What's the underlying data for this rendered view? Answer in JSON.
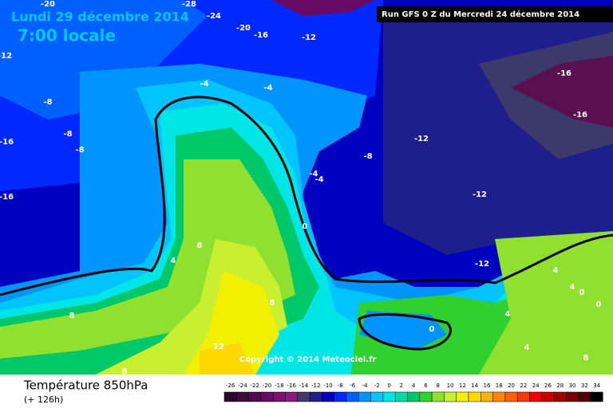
{
  "header": {
    "date": "Lundi 29 décembre 2014",
    "time": "7:00 locale",
    "run": "Run GFS 0 Z du Mercredi 24 décembre 2014"
  },
  "copyright": "Copyright © 2014 Meteociel.fr",
  "footer": {
    "title": "Température 850hPa",
    "lead": "(+ 126h)"
  },
  "legend": {
    "values": [
      -26,
      -24,
      -22,
      -20,
      -18,
      -16,
      -14,
      -12,
      -10,
      -8,
      -6,
      -4,
      -2,
      0,
      2,
      4,
      6,
      8,
      10,
      12,
      14,
      16,
      18,
      20,
      22,
      24,
      26,
      28,
      30,
      32,
      34
    ],
    "colors": [
      "#2d0a2d",
      "#3f0a3f",
      "#520a52",
      "#660a66",
      "#7a1070",
      "#8a1a80",
      "#3c3a6a",
      "#1e1e8c",
      "#0000c0",
      "#0028ff",
      "#0060ff",
      "#0094ff",
      "#00c4ff",
      "#00e6e6",
      "#00d8a8",
      "#00c868",
      "#30d030",
      "#90e030",
      "#c8f030",
      "#f0f000",
      "#ffd800",
      "#ffb000",
      "#ff8800",
      "#ff6000",
      "#ff3800",
      "#f00000",
      "#c80000",
      "#a00000",
      "#780000",
      "#500000",
      "#000000"
    ]
  },
  "map_labels": [
    -28,
    -24,
    -20,
    -16,
    -12,
    -20,
    -12,
    -8,
    -8,
    -8,
    -16,
    -16,
    -4,
    -4,
    -4,
    -4,
    -8,
    -12,
    -12,
    -12,
    -16,
    -16,
    0,
    4,
    8,
    8,
    8,
    8,
    12,
    0,
    4,
    4,
    0,
    0,
    4,
    4,
    8
  ]
}
